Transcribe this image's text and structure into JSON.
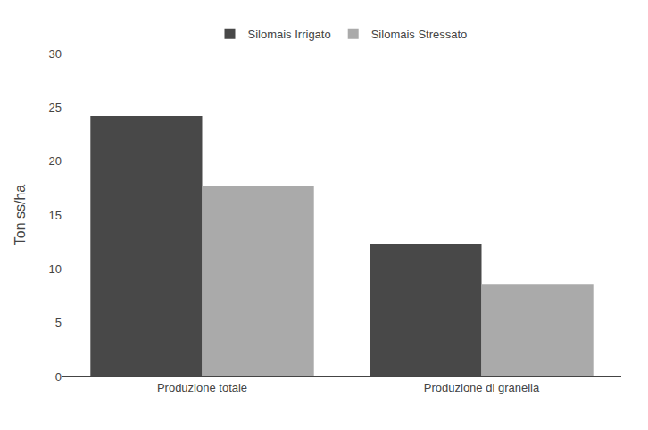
{
  "chart_data": {
    "type": "bar",
    "categories": [
      "Produzione totale",
      "Produzione di granella"
    ],
    "series": [
      {
        "name": "Silomais Irrigato",
        "color": "#484848",
        "values": [
          24.2,
          12.3
        ]
      },
      {
        "name": "Silomais Stressato",
        "color": "#aaaaaa",
        "values": [
          17.7,
          8.6
        ]
      }
    ],
    "ylabel": "Ton ss/ha",
    "ylim": [
      0,
      30
    ],
    "yticks": [
      0,
      5,
      10,
      15,
      20,
      25,
      30
    ],
    "grid": false,
    "legend": "top"
  }
}
